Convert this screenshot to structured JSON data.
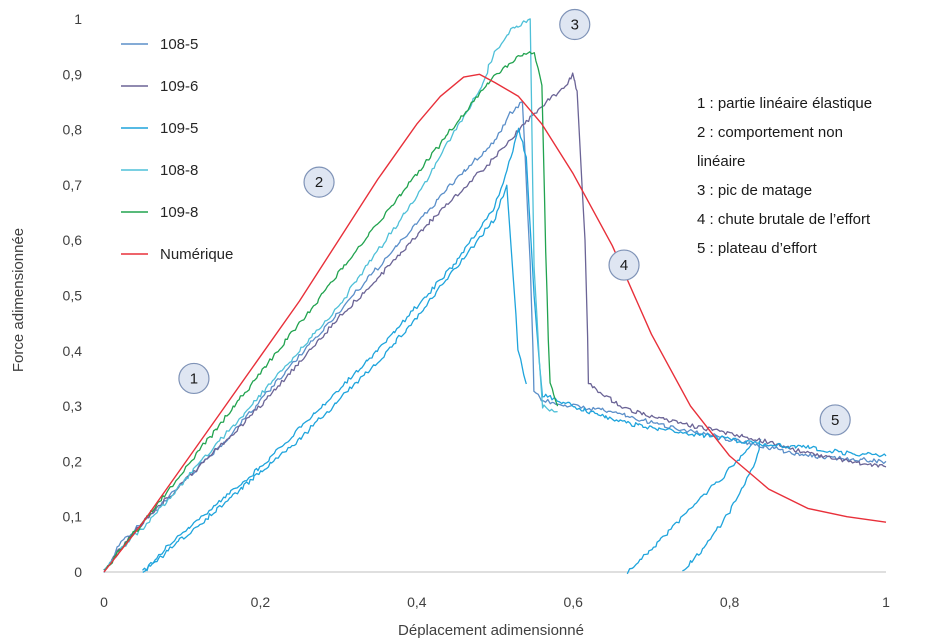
{
  "chart_data": {
    "type": "line",
    "title": "",
    "xlabel": "Déplacement adimensionné",
    "ylabel": "Force adimensionnée",
    "xlim": [
      0,
      1
    ],
    "ylim": [
      0,
      1
    ],
    "x_ticks": [
      "0",
      "0,2",
      "0,4",
      "0,6",
      "0,8",
      "1"
    ],
    "y_ticks": [
      "0",
      "0,1",
      "0,2",
      "0,3",
      "0,4",
      "0,5",
      "0,6",
      "0,7",
      "0,8",
      "0,9",
      "1"
    ],
    "grid": false,
    "legend_position": "top-left",
    "series": [
      {
        "name": "108-5",
        "color": "#5b8fc9",
        "noisy": true,
        "points": [
          [
            0,
            0
          ],
          [
            0.02,
            0.05
          ],
          [
            0.05,
            0.09
          ],
          [
            0.1,
            0.16
          ],
          [
            0.15,
            0.23
          ],
          [
            0.2,
            0.31
          ],
          [
            0.25,
            0.39
          ],
          [
            0.3,
            0.47
          ],
          [
            0.35,
            0.55
          ],
          [
            0.4,
            0.63
          ],
          [
            0.45,
            0.71
          ],
          [
            0.5,
            0.78
          ],
          [
            0.52,
            0.83
          ],
          [
            0.535,
            0.85
          ],
          [
            0.545,
            0.56
          ],
          [
            0.55,
            0.33
          ],
          [
            0.56,
            0.31
          ],
          [
            0.6,
            0.3
          ],
          [
            0.65,
            0.29
          ],
          [
            0.7,
            0.27
          ],
          [
            0.75,
            0.255
          ],
          [
            0.8,
            0.24
          ],
          [
            0.85,
            0.225
          ],
          [
            0.9,
            0.21
          ],
          [
            0.95,
            0.205
          ],
          [
            1.0,
            0.2
          ]
        ]
      },
      {
        "name": "109-6",
        "color": "#6b6496",
        "noisy": true,
        "points": [
          [
            0,
            0
          ],
          [
            0.02,
            0.04
          ],
          [
            0.05,
            0.09
          ],
          [
            0.1,
            0.16
          ],
          [
            0.15,
            0.23
          ],
          [
            0.2,
            0.3
          ],
          [
            0.25,
            0.38
          ],
          [
            0.3,
            0.46
          ],
          [
            0.35,
            0.53
          ],
          [
            0.4,
            0.61
          ],
          [
            0.45,
            0.68
          ],
          [
            0.5,
            0.75
          ],
          [
            0.55,
            0.83
          ],
          [
            0.59,
            0.88
          ],
          [
            0.6,
            0.9
          ],
          [
            0.605,
            0.87
          ],
          [
            0.615,
            0.6
          ],
          [
            0.62,
            0.34
          ],
          [
            0.64,
            0.32
          ],
          [
            0.66,
            0.3
          ],
          [
            0.7,
            0.28
          ],
          [
            0.75,
            0.265
          ],
          [
            0.8,
            0.25
          ],
          [
            0.85,
            0.235
          ],
          [
            0.9,
            0.215
          ],
          [
            0.95,
            0.2
          ],
          [
            1.0,
            0.19
          ]
        ]
      },
      {
        "name": "109-5",
        "color": "#1fa4dc",
        "noisy": true,
        "points": [
          [
            0.05,
            0
          ],
          [
            0.07,
            0.03
          ],
          [
            0.1,
            0.07
          ],
          [
            0.15,
            0.13
          ],
          [
            0.2,
            0.19
          ],
          [
            0.25,
            0.26
          ],
          [
            0.3,
            0.33
          ],
          [
            0.35,
            0.4
          ],
          [
            0.4,
            0.48
          ],
          [
            0.45,
            0.56
          ],
          [
            0.5,
            0.66
          ],
          [
            0.52,
            0.75
          ],
          [
            0.53,
            0.8
          ],
          [
            0.54,
            0.75
          ],
          [
            0.55,
            0.5
          ],
          [
            0.56,
            0.32
          ],
          [
            0.6,
            0.3
          ],
          [
            0.65,
            0.275
          ],
          [
            0.7,
            0.26
          ],
          [
            0.75,
            0.25
          ],
          [
            0.8,
            0.24
          ],
          [
            0.85,
            0.23
          ],
          [
            0.9,
            0.225
          ],
          [
            0.95,
            0.215
          ],
          [
            1.0,
            0.21
          ]
        ]
      },
      {
        "name": "108-8",
        "color": "#4fc0d8",
        "noisy": true,
        "points": [
          [
            0,
            0
          ],
          [
            0.02,
            0.04
          ],
          [
            0.05,
            0.08
          ],
          [
            0.1,
            0.16
          ],
          [
            0.15,
            0.24
          ],
          [
            0.2,
            0.32
          ],
          [
            0.25,
            0.4
          ],
          [
            0.3,
            0.48
          ],
          [
            0.35,
            0.58
          ],
          [
            0.4,
            0.68
          ],
          [
            0.45,
            0.8
          ],
          [
            0.48,
            0.87
          ],
          [
            0.5,
            0.94
          ],
          [
            0.52,
            0.98
          ],
          [
            0.545,
            1.0
          ],
          [
            0.55,
            0.55
          ],
          [
            0.56,
            0.3
          ],
          [
            0.58,
            0.29
          ]
        ]
      },
      {
        "name": "109-8",
        "color": "#21a34f",
        "noisy": true,
        "points": [
          [
            0,
            0
          ],
          [
            0.02,
            0.04
          ],
          [
            0.05,
            0.09
          ],
          [
            0.1,
            0.18
          ],
          [
            0.15,
            0.27
          ],
          [
            0.2,
            0.36
          ],
          [
            0.25,
            0.45
          ],
          [
            0.3,
            0.54
          ],
          [
            0.35,
            0.63
          ],
          [
            0.4,
            0.72
          ],
          [
            0.45,
            0.81
          ],
          [
            0.5,
            0.9
          ],
          [
            0.53,
            0.93
          ],
          [
            0.55,
            0.94
          ],
          [
            0.56,
            0.88
          ],
          [
            0.565,
            0.58
          ],
          [
            0.57,
            0.34
          ],
          [
            0.58,
            0.3
          ]
        ]
      },
      {
        "name": "Numérique",
        "color": "#e8303a",
        "noisy": false,
        "points": [
          [
            0,
            0
          ],
          [
            0.05,
            0.09
          ],
          [
            0.1,
            0.19
          ],
          [
            0.15,
            0.29
          ],
          [
            0.2,
            0.39
          ],
          [
            0.25,
            0.49
          ],
          [
            0.3,
            0.6
          ],
          [
            0.35,
            0.71
          ],
          [
            0.4,
            0.81
          ],
          [
            0.43,
            0.86
          ],
          [
            0.46,
            0.895
          ],
          [
            0.48,
            0.9
          ],
          [
            0.5,
            0.885
          ],
          [
            0.53,
            0.86
          ],
          [
            0.56,
            0.81
          ],
          [
            0.6,
            0.72
          ],
          [
            0.65,
            0.59
          ],
          [
            0.7,
            0.43
          ],
          [
            0.75,
            0.3
          ],
          [
            0.8,
            0.21
          ],
          [
            0.85,
            0.15
          ],
          [
            0.9,
            0.115
          ],
          [
            0.95,
            0.1
          ],
          [
            1.0,
            0.09
          ]
        ]
      }
    ],
    "extra_traces": [
      {
        "color": "#1fa4dc",
        "points": [
          [
            0.67,
            0
          ],
          [
            0.72,
            0.07
          ],
          [
            0.76,
            0.13
          ],
          [
            0.79,
            0.17
          ],
          [
            0.81,
            0.2
          ],
          [
            0.82,
            0.22
          ],
          [
            0.83,
            0.235
          ]
        ]
      },
      {
        "color": "#1fa4dc",
        "points": [
          [
            0.74,
            0
          ],
          [
            0.77,
            0.05
          ],
          [
            0.8,
            0.11
          ],
          [
            0.82,
            0.16
          ],
          [
            0.835,
            0.21
          ],
          [
            0.84,
            0.24
          ]
        ]
      },
      {
        "color": "#1fa4dc",
        "points": [
          [
            0.05,
            0
          ],
          [
            0.1,
            0.06
          ],
          [
            0.15,
            0.12
          ],
          [
            0.2,
            0.18
          ],
          [
            0.25,
            0.24
          ],
          [
            0.3,
            0.31
          ],
          [
            0.35,
            0.38
          ],
          [
            0.4,
            0.46
          ],
          [
            0.45,
            0.55
          ],
          [
            0.5,
            0.64
          ],
          [
            0.515,
            0.7
          ],
          [
            0.52,
            0.6
          ],
          [
            0.53,
            0.4
          ],
          [
            0.54,
            0.34
          ]
        ]
      }
    ],
    "markers": [
      {
        "label": "1",
        "x": 0.115,
        "y": 0.35
      },
      {
        "label": "2",
        "x": 0.275,
        "y": 0.705
      },
      {
        "label": "3",
        "x": 0.602,
        "y": 0.99
      },
      {
        "label": "4",
        "x": 0.665,
        "y": 0.555
      },
      {
        "label": "5",
        "x": 0.935,
        "y": 0.275
      }
    ],
    "annotations": [
      "1 : partie linéaire élastique",
      "2 : comportement non",
      "linéaire",
      "3 : pic de matage",
      "4 : chute brutale de l’effort",
      "5 : plateau d’effort"
    ]
  }
}
